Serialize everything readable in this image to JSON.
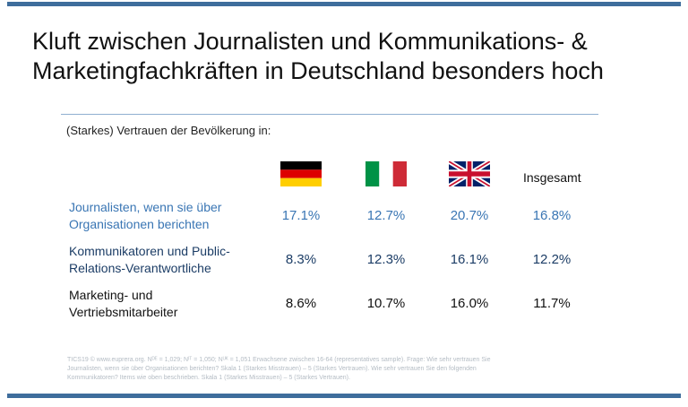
{
  "title": {
    "line1": "Kluft zwischen Journalisten und Kommunikations- &",
    "line2": "Marketingfachkräften in Deutschland besonders hoch"
  },
  "subtitle": "(Starkes) Vertrauen der Bevölkerung in:",
  "columns": {
    "flags": [
      "flag-germany-icon",
      "flag-italy-icon",
      "flag-uk-icon"
    ],
    "total_label": "Insgesamt"
  },
  "rows": [
    {
      "label_line1": "Journalisten, wenn sie über",
      "label_line2": "Organisationen berichten",
      "values": [
        "17.1%",
        "12.7%",
        "20.7%",
        "16.8%"
      ],
      "color": "#3a76b4"
    },
    {
      "label_line1": "Kommunikatoren und Public-",
      "label_line2": "Relations-Verantwortliche",
      "values": [
        "8.3%",
        "12.3%",
        "16.1%",
        "12.2%"
      ],
      "color": "#1c3d66"
    },
    {
      "label_line1": "Marketing- und",
      "label_line2": "Vertriebsmitarbeiter",
      "values": [
        "8.6%",
        "10.7%",
        "16.0%",
        "11.7%"
      ],
      "color": "#111111"
    }
  ],
  "footnote": {
    "line1": "TICS19 © www.euprera.org. Nᴰᴱ = 1,029; Nᴵᵀ = 1,050; Nᵁᴷ = 1,051 Erwachsene zwischen 16-64 (representatives sample). Frage: Wie sehr vertrauen Sie",
    "line2": "Journalisten, wenn sie über Organisationen berichten? Skala 1 (Starkes Misstrauen) – 5 (Starkes Vertrauen). Wie sehr vertrauen Sie den folgenden",
    "line3": "Kommunikatoren? Items wie oben beschrieben. Skala 1 (Starkes Misstrauen) – 5 (Starkes Vertrauen)."
  },
  "colors": {
    "accent_bar": "#3e6d9c",
    "rule": "#8fb0d0"
  }
}
